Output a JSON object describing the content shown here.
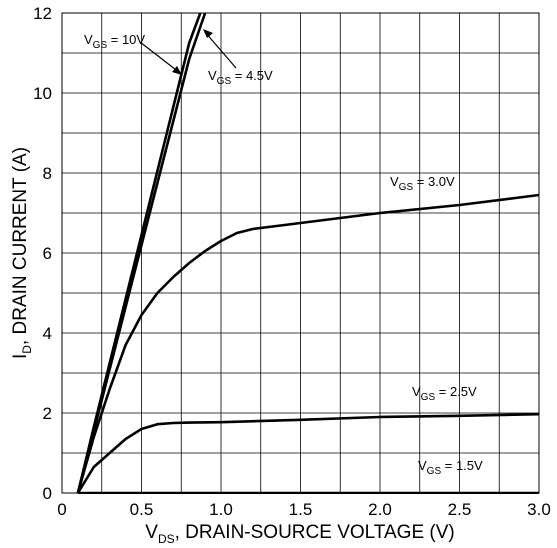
{
  "chart_data": {
    "type": "line",
    "xlabel": {
      "main": "V",
      "sub": "DS",
      "rest": ", DRAIN-SOURCE VOLTAGE (V)"
    },
    "ylabel": {
      "main": "I",
      "sub": "D",
      "rest": ", DRAIN CURRENT (A)"
    },
    "xlim": [
      0,
      3.0
    ],
    "ylim": [
      0,
      12
    ],
    "x_ticks": [
      "0",
      "0.5",
      "1.0",
      "1.5",
      "2.0",
      "2.5",
      "3.0"
    ],
    "x_tick_values": [
      0,
      0.5,
      1.0,
      1.5,
      2.0,
      2.5,
      3.0
    ],
    "y_ticks": [
      "0",
      "2",
      "4",
      "6",
      "8",
      "10",
      "12"
    ],
    "y_tick_values": [
      0,
      2,
      4,
      6,
      8,
      10,
      12
    ],
    "grid": true,
    "series": [
      {
        "name": "10V",
        "x": [
          0.1,
          0.2,
          0.3,
          0.4,
          0.5,
          0.6,
          0.7,
          0.8,
          0.87
        ],
        "y": [
          0,
          1.65,
          3.25,
          4.85,
          6.45,
          8.05,
          9.65,
          11.25,
          12.0
        ]
      },
      {
        "name": "4.5V",
        "x": [
          0.1,
          0.2,
          0.3,
          0.4,
          0.5,
          0.6,
          0.7,
          0.8,
          0.9
        ],
        "y": [
          0,
          1.55,
          3.1,
          4.65,
          6.2,
          7.75,
          9.3,
          10.85,
          12.0
        ]
      },
      {
        "name": "3.0V",
        "x": [
          0.1,
          0.2,
          0.3,
          0.4,
          0.5,
          0.6,
          0.7,
          0.8,
          0.9,
          1.0,
          1.1,
          1.2,
          1.4,
          1.7,
          2.0,
          2.5,
          3.0
        ],
        "y": [
          0,
          1.4,
          2.6,
          3.7,
          4.45,
          5.0,
          5.4,
          5.75,
          6.05,
          6.3,
          6.5,
          6.6,
          6.7,
          6.85,
          7.0,
          7.2,
          7.45
        ]
      },
      {
        "name": "2.5V",
        "x": [
          0.1,
          0.2,
          0.3,
          0.4,
          0.5,
          0.6,
          0.7,
          0.8,
          1.0,
          1.5,
          2.0,
          2.5,
          3.0
        ],
        "y": [
          0,
          0.65,
          1.0,
          1.35,
          1.6,
          1.72,
          1.75,
          1.76,
          1.77,
          1.83,
          1.9,
          1.93,
          1.97
        ]
      },
      {
        "name": "1.5V",
        "x": [
          0.1,
          3.0
        ],
        "y": [
          0,
          0
        ]
      }
    ],
    "annotations": [
      {
        "main": "V",
        "sub": "GS",
        "rest": " = 10V"
      },
      {
        "main": "V",
        "sub": "GS",
        "rest": " = 4.5V"
      },
      {
        "main": "V",
        "sub": "GS",
        "rest": " = 3.0V"
      },
      {
        "main": "V",
        "sub": "GS",
        "rest": " = 2.5V"
      },
      {
        "main": "V",
        "sub": "GS",
        "rest": " = 1.5V"
      }
    ],
    "line_color": "#000000",
    "grid_color": "#000000"
  }
}
